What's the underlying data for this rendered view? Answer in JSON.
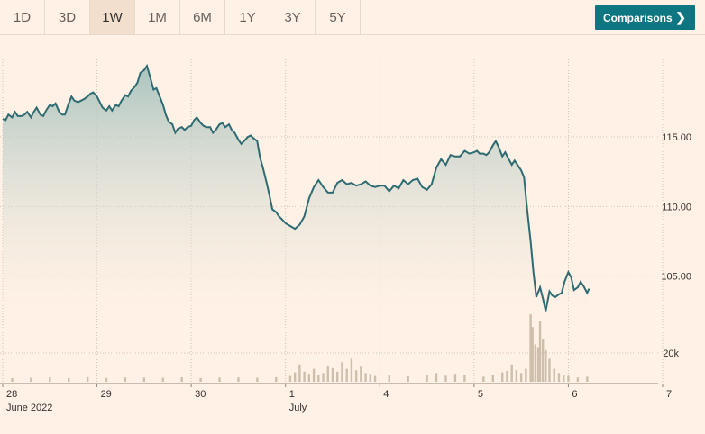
{
  "toolbar": {
    "ranges": [
      "1D",
      "3D",
      "1W",
      "1M",
      "6M",
      "1Y",
      "3Y",
      "5Y"
    ],
    "active_range": "1W",
    "comparisons_label": "Comparisons",
    "comparisons_icon": "chevron-right-icon"
  },
  "colors": {
    "background": "#fff1e5",
    "line": "#2e6b72",
    "area_top": "#a7c2bd",
    "volume": "#cdbfac",
    "accent_button": "#0d7680"
  },
  "chart_data": {
    "type": "line",
    "grid": true,
    "x_tick_labels": [
      "28",
      "29",
      "30",
      "1",
      "4",
      "5",
      "6",
      "7"
    ],
    "x_sub_labels": [
      "June 2022",
      "July"
    ],
    "y_tick_labels": [
      "115.00",
      "110.00",
      "105.00"
    ],
    "y_ticks": [
      115,
      110,
      105
    ],
    "ylim": [
      102.2,
      120.5
    ],
    "xlim": [
      0,
      7
    ],
    "volume_tick_label": "20k",
    "volume_tick_value": 20000,
    "volume_max": 48000,
    "series": [
      {
        "x": [
          0.0,
          0.03,
          0.06,
          0.1,
          0.13,
          0.16,
          0.2,
          0.23,
          0.26,
          0.3,
          0.33,
          0.36,
          0.4,
          0.43,
          0.46,
          0.5,
          0.53,
          0.56,
          0.6,
          0.63,
          0.66,
          0.7,
          0.73,
          0.76,
          0.8,
          0.83,
          0.86,
          0.9,
          0.93,
          0.96,
          1.0,
          1.03,
          1.06,
          1.1,
          1.13,
          1.16,
          1.2,
          1.23,
          1.26,
          1.3,
          1.33,
          1.36,
          1.4,
          1.43,
          1.46,
          1.5,
          1.53,
          1.56,
          1.6,
          1.63,
          1.66,
          1.7,
          1.73,
          1.76,
          1.8,
          1.83,
          1.86,
          1.9,
          1.93,
          1.96,
          2.0,
          2.03,
          2.06,
          2.1,
          2.13,
          2.16,
          2.2,
          2.23,
          2.26,
          2.3,
          2.33,
          2.36,
          2.4,
          2.43,
          2.46,
          2.5,
          2.53,
          2.56,
          2.6,
          2.63,
          2.66,
          2.7,
          2.73,
          2.76,
          2.8,
          2.83,
          2.86,
          2.9,
          2.93,
          2.96,
          3.0,
          3.05,
          3.1,
          3.15,
          3.2,
          3.25,
          3.3,
          3.35,
          3.4,
          3.45,
          3.5,
          3.55,
          3.6,
          3.65,
          3.7,
          3.75,
          3.8,
          3.85,
          3.9,
          3.95,
          4.0,
          4.05,
          4.1,
          4.15,
          4.2,
          4.25,
          4.3,
          4.35,
          4.4,
          4.45,
          4.5,
          4.55,
          4.6,
          4.65,
          4.7,
          4.75,
          4.8,
          4.85,
          4.9,
          4.95,
          5.0,
          5.03,
          5.06,
          5.1,
          5.13,
          5.16,
          5.2,
          5.23,
          5.26,
          5.3,
          5.33,
          5.36,
          5.4,
          5.43,
          5.46,
          5.5,
          5.53,
          5.56,
          5.6,
          5.63,
          5.66,
          5.7,
          5.73,
          5.76,
          5.8,
          5.83,
          5.86,
          5.9,
          5.93,
          5.96,
          6.0,
          6.03,
          6.06,
          6.1,
          6.13,
          6.16,
          6.2,
          6.22
        ],
        "y": [
          116.3,
          116.2,
          116.6,
          116.4,
          116.8,
          116.5,
          116.5,
          116.6,
          116.8,
          116.4,
          116.8,
          117.1,
          116.6,
          116.5,
          116.9,
          117.3,
          117.2,
          117.4,
          116.8,
          116.6,
          116.6,
          117.4,
          117.9,
          117.6,
          117.5,
          117.6,
          117.7,
          117.9,
          118.1,
          118.2,
          117.9,
          117.5,
          117.1,
          116.9,
          117.2,
          116.9,
          117.3,
          117.2,
          117.6,
          118.0,
          117.9,
          118.3,
          118.6,
          118.9,
          119.6,
          119.8,
          120.1,
          119.4,
          118.4,
          118.5,
          118.0,
          117.3,
          116.6,
          116.1,
          115.9,
          115.3,
          115.6,
          115.7,
          115.5,
          115.7,
          115.8,
          116.2,
          116.4,
          116.0,
          115.8,
          115.7,
          115.7,
          115.3,
          115.5,
          115.9,
          116.0,
          115.7,
          115.9,
          115.5,
          115.3,
          114.8,
          114.5,
          114.7,
          115.0,
          115.1,
          114.9,
          114.7,
          113.5,
          112.8,
          111.7,
          110.8,
          109.8,
          109.6,
          109.3,
          109.1,
          108.8,
          108.6,
          108.4,
          108.7,
          109.3,
          110.6,
          111.4,
          111.9,
          111.4,
          111.0,
          111.0,
          111.7,
          111.9,
          111.6,
          111.7,
          111.5,
          111.6,
          111.8,
          111.5,
          111.4,
          111.5,
          111.5,
          111.1,
          111.5,
          111.3,
          111.9,
          111.6,
          111.9,
          112.0,
          111.4,
          111.2,
          111.6,
          112.8,
          113.4,
          113.0,
          113.7,
          113.6,
          113.6,
          114.0,
          113.8,
          113.9,
          114.0,
          113.8,
          113.8,
          113.7,
          113.9,
          114.4,
          114.7,
          114.3,
          113.6,
          113.9,
          113.5,
          113.0,
          113.3,
          113.0,
          112.6,
          112.1,
          110.0,
          107.5,
          105.3,
          103.5,
          104.2,
          103.4,
          102.5,
          103.9,
          103.6,
          103.5,
          103.7,
          103.8,
          104.6,
          105.3,
          104.9,
          104.0,
          104.2,
          104.6,
          104.3,
          103.8,
          104.1
        ]
      }
    ],
    "volume": {
      "x": [
        0.1,
        0.3,
        0.5,
        0.7,
        0.9,
        1.1,
        1.3,
        1.5,
        1.7,
        1.9,
        2.1,
        2.3,
        2.5,
        2.7,
        2.9,
        3.05,
        3.1,
        3.15,
        3.2,
        3.25,
        3.3,
        3.35,
        3.4,
        3.45,
        3.5,
        3.55,
        3.6,
        3.65,
        3.7,
        3.75,
        3.8,
        3.85,
        3.9,
        3.95,
        4.1,
        4.3,
        4.5,
        4.6,
        4.7,
        4.8,
        4.9,
        5.1,
        5.2,
        5.3,
        5.35,
        5.4,
        5.45,
        5.5,
        5.55,
        5.6,
        5.62,
        5.65,
        5.68,
        5.7,
        5.73,
        5.76,
        5.8,
        5.85,
        5.9,
        5.95,
        6.0,
        6.1,
        6.2
      ],
      "values": [
        2500,
        2800,
        3000,
        2600,
        3200,
        2700,
        3000,
        2900,
        2800,
        3100,
        2600,
        2900,
        3000,
        2800,
        3200,
        4000,
        6500,
        12000,
        7000,
        5500,
        9000,
        4500,
        6000,
        11000,
        9500,
        7000,
        13500,
        9000,
        16000,
        8000,
        10500,
        6000,
        5500,
        4000,
        4500,
        3800,
        5000,
        6000,
        4200,
        5500,
        4800,
        3500,
        5000,
        6500,
        7500,
        12000,
        8000,
        6000,
        9000,
        47000,
        38000,
        26000,
        24000,
        42000,
        30000,
        22000,
        16000,
        9000,
        6000,
        5000,
        4000,
        3000,
        3500
      ]
    }
  }
}
